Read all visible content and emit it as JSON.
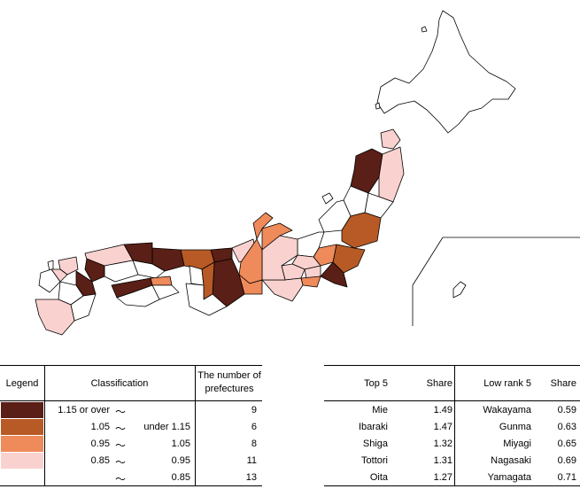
{
  "colors": {
    "class1": "#5a1f16",
    "class2": "#b85a26",
    "class3": "#ef8a5a",
    "class4": "#f9d2cf",
    "class5": "#ffffff"
  },
  "legend": {
    "header_legend": "Legend",
    "header_classification": "Classification",
    "header_count": "The number of prefectures",
    "tilde": "～",
    "rows": [
      {
        "lo": "1.15 or over",
        "tilde": "～",
        "hi": "",
        "count": "9"
      },
      {
        "lo": "1.05",
        "tilde": "～",
        "hi": "under 1.15",
        "count": "6"
      },
      {
        "lo": "0.95",
        "tilde": "～",
        "hi": "1.05",
        "count": "8"
      },
      {
        "lo": "0.85",
        "tilde": "～",
        "hi": "0.95",
        "count": "11"
      },
      {
        "lo": "",
        "tilde": "～",
        "hi": "0.85",
        "count": "13"
      }
    ]
  },
  "ranking": {
    "header_top": "Top 5",
    "header_share": "Share",
    "header_low": "Low rank 5",
    "header_share2": "Share",
    "top": [
      {
        "name": "Mie",
        "share": "1.49"
      },
      {
        "name": "Ibaraki",
        "share": "1.47"
      },
      {
        "name": "Shiga",
        "share": "1.32"
      },
      {
        "name": "Tottori",
        "share": "1.31"
      },
      {
        "name": "Oita",
        "share": "1.27"
      }
    ],
    "low": [
      {
        "name": "Wakayama",
        "share": "0.59"
      },
      {
        "name": "Gunma",
        "share": "0.63"
      },
      {
        "name": "Miyagi",
        "share": "0.65"
      },
      {
        "name": "Nagasaki",
        "share": "0.69"
      },
      {
        "name": "Yamagata",
        "share": "0.71"
      }
    ]
  }
}
